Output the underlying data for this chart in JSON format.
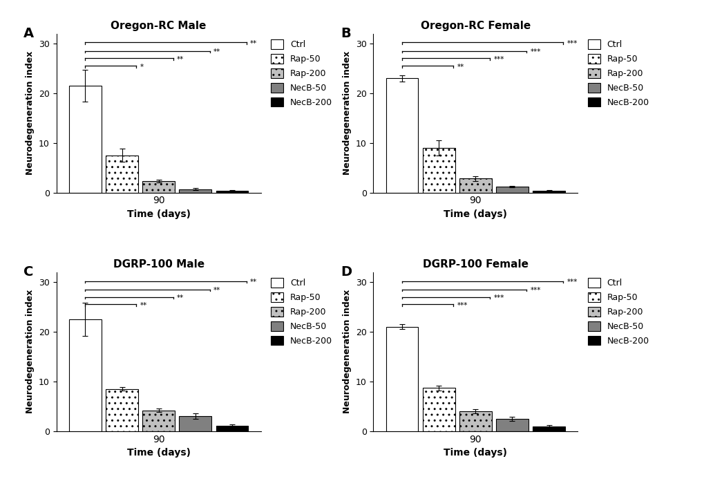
{
  "panels": [
    {
      "label": "A",
      "title": "Oregon-RC Male",
      "values": [
        21.5,
        7.5,
        2.3,
        0.7,
        0.4
      ],
      "errors": [
        3.2,
        1.3,
        0.3,
        0.15,
        0.1
      ],
      "significance": [
        {
          "from": 0,
          "to": 1,
          "text": "*",
          "y": 25.5
        },
        {
          "from": 0,
          "to": 2,
          "text": "**",
          "y": 27.0
        },
        {
          "from": 0,
          "to": 3,
          "text": "**",
          "y": 28.5
        },
        {
          "from": 0,
          "to": 4,
          "text": "**",
          "y": 30.2
        }
      ]
    },
    {
      "label": "B",
      "title": "Oregon-RC Female",
      "values": [
        23.0,
        9.0,
        2.8,
        1.2,
        0.4
      ],
      "errors": [
        0.6,
        1.5,
        0.5,
        0.2,
        0.1
      ],
      "significance": [
        {
          "from": 0,
          "to": 1,
          "text": "**",
          "y": 25.5
        },
        {
          "from": 0,
          "to": 2,
          "text": "***",
          "y": 27.0
        },
        {
          "from": 0,
          "to": 3,
          "text": "***",
          "y": 28.5
        },
        {
          "from": 0,
          "to": 4,
          "text": "***",
          "y": 30.2
        }
      ]
    },
    {
      "label": "C",
      "title": "DGRP-100 Male",
      "values": [
        22.5,
        8.5,
        4.2,
        3.0,
        1.1
      ],
      "errors": [
        3.3,
        0.4,
        0.4,
        0.6,
        0.2
      ],
      "significance": [
        {
          "from": 0,
          "to": 1,
          "text": "**",
          "y": 25.5
        },
        {
          "from": 0,
          "to": 2,
          "text": "**",
          "y": 27.0
        },
        {
          "from": 0,
          "to": 3,
          "text": "**",
          "y": 28.5
        },
        {
          "from": 0,
          "to": 4,
          "text": "**",
          "y": 30.2
        }
      ]
    },
    {
      "label": "D",
      "title": "DGRP-100 Female",
      "values": [
        21.0,
        8.7,
        4.0,
        2.5,
        1.0
      ],
      "errors": [
        0.5,
        0.5,
        0.4,
        0.4,
        0.2
      ],
      "significance": [
        {
          "from": 0,
          "to": 1,
          "text": "***",
          "y": 25.5
        },
        {
          "from": 0,
          "to": 2,
          "text": "***",
          "y": 27.0
        },
        {
          "from": 0,
          "to": 3,
          "text": "***",
          "y": 28.5
        },
        {
          "from": 0,
          "to": 4,
          "text": "***",
          "y": 30.2
        }
      ]
    }
  ],
  "bar_colors": [
    "white",
    "white",
    "#c0c0c0",
    "#808080",
    "black"
  ],
  "bar_hatches": [
    "",
    "..",
    "..",
    "",
    ""
  ],
  "bar_edgecolors": [
    "black",
    "black",
    "black",
    "black",
    "black"
  ],
  "legend_labels": [
    "Ctrl",
    "Rap-50",
    "Rap-200",
    "NecB-50",
    "NecB-200"
  ],
  "xlabel": "Time (days)",
  "ylabel": "Neurodegeneration index",
  "xtick_label": "90",
  "ylim": [
    0,
    32
  ],
  "yticks": [
    0,
    10,
    20,
    30
  ],
  "bar_width": 0.7,
  "bar_spacing": 0.8
}
